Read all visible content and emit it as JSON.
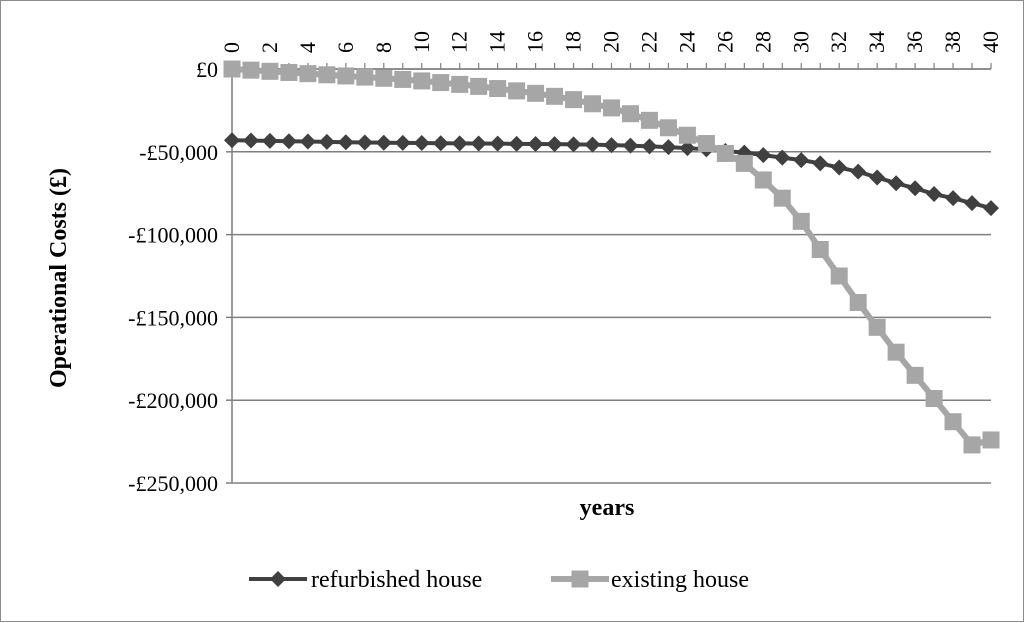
{
  "chart_data": {
    "type": "line",
    "title": "",
    "xlabel": "years",
    "ylabel": "Operational Costs (£)",
    "x": [
      0,
      1,
      2,
      3,
      4,
      5,
      6,
      7,
      8,
      9,
      10,
      11,
      12,
      13,
      14,
      15,
      16,
      17,
      18,
      19,
      20,
      21,
      22,
      23,
      24,
      25,
      26,
      27,
      28,
      29,
      30,
      31,
      32,
      33,
      34,
      35,
      36,
      37,
      38,
      39,
      40
    ],
    "x_tick_labels": [
      "0",
      "2",
      "4",
      "6",
      "8",
      "10",
      "12",
      "14",
      "16",
      "18",
      "20",
      "22",
      "24",
      "26",
      "28",
      "30",
      "32",
      "34",
      "36",
      "38",
      "40"
    ],
    "x_tick_values": [
      0,
      2,
      4,
      6,
      8,
      10,
      12,
      14,
      16,
      18,
      20,
      22,
      24,
      26,
      28,
      30,
      32,
      34,
      36,
      38,
      40
    ],
    "xlim": [
      0,
      40
    ],
    "x_axis_position": "top",
    "ylim": [
      -250000,
      0
    ],
    "y_tick_values": [
      0,
      -50000,
      -100000,
      -150000,
      -200000,
      -250000
    ],
    "y_tick_labels": [
      "£0",
      "-£50,000",
      "-£100,000",
      "-£150,000",
      "-£200,000",
      "-£250,000"
    ],
    "grid": "horizontal",
    "legend_position": "bottom",
    "series": [
      {
        "name": "refurbished house",
        "color": "#404040",
        "marker": "diamond",
        "values": [
          -43000,
          -43200,
          -43400,
          -43600,
          -43800,
          -44000,
          -44200,
          -44400,
          -44500,
          -44600,
          -44700,
          -44800,
          -44900,
          -45000,
          -45100,
          -45200,
          -45300,
          -45400,
          -45500,
          -45700,
          -46000,
          -46300,
          -46700,
          -47200,
          -47800,
          -48500,
          -49500,
          -50500,
          -52000,
          -53500,
          -55000,
          -57000,
          -59500,
          -62000,
          -65500,
          -69000,
          -72000,
          -75500,
          -78000,
          -81000,
          -84000
        ]
      },
      {
        "name": "existing house",
        "color": "#a6a6a6",
        "marker": "square",
        "values": [
          0,
          -700,
          -1400,
          -2100,
          -2800,
          -3500,
          -4200,
          -4900,
          -5600,
          -6300,
          -7200,
          -8200,
          -9300,
          -10500,
          -11800,
          -13200,
          -14700,
          -16500,
          -18500,
          -21000,
          -23500,
          -27000,
          -31000,
          -35500,
          -40000,
          -45000,
          -51000,
          -57000,
          -67000,
          -78000,
          -92000,
          -109000,
          -125000,
          -141000,
          -156000,
          -171000,
          -185000,
          -199000,
          -213000,
          -227000,
          -224000
        ]
      }
    ]
  }
}
